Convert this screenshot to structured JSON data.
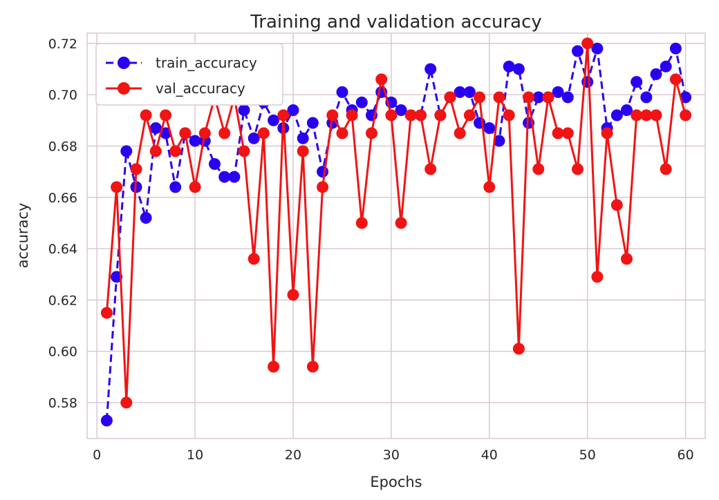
{
  "chart_data": {
    "type": "line",
    "title": "Training and validation accuracy",
    "xlabel": "Epochs",
    "ylabel": "accuracy",
    "xlim": [
      -1,
      62
    ],
    "ylim": [
      0.566,
      0.724
    ],
    "xticks": [
      0,
      10,
      20,
      30,
      40,
      50,
      60
    ],
    "xtick_labels": [
      "0",
      "10",
      "20",
      "30",
      "40",
      "50",
      "60"
    ],
    "yticks": [
      0.58,
      0.6,
      0.62,
      0.64,
      0.66,
      0.68,
      0.7,
      0.72
    ],
    "ytick_labels": [
      "0.58",
      "0.60",
      "0.62",
      "0.64",
      "0.66",
      "0.68",
      "0.70",
      "0.72"
    ],
    "grid": true,
    "legend_position": "top-left",
    "x": [
      1,
      2,
      3,
      4,
      5,
      6,
      7,
      8,
      9,
      10,
      11,
      12,
      13,
      14,
      15,
      16,
      17,
      18,
      19,
      20,
      21,
      22,
      23,
      24,
      25,
      26,
      27,
      28,
      29,
      30,
      31,
      32,
      33,
      34,
      35,
      36,
      37,
      38,
      39,
      40,
      41,
      42,
      43,
      44,
      45,
      46,
      47,
      48,
      49,
      50,
      51,
      52,
      53,
      54,
      55,
      56,
      57,
      58,
      59,
      60
    ],
    "series": [
      {
        "name": "train_accuracy",
        "color": "#2a00f0",
        "line_style": "dashed",
        "marker": "circle",
        "values": [
          0.573,
          0.629,
          0.678,
          0.664,
          0.652,
          0.687,
          0.685,
          0.664,
          0.685,
          0.682,
          0.682,
          0.673,
          0.668,
          0.668,
          0.694,
          0.683,
          0.697,
          0.69,
          0.687,
          0.694,
          0.683,
          0.689,
          0.67,
          0.689,
          0.701,
          0.694,
          0.697,
          0.692,
          0.701,
          0.697,
          0.694,
          0.692,
          0.692,
          0.71,
          0.692,
          0.699,
          0.701,
          0.701,
          0.689,
          0.687,
          0.682,
          0.711,
          0.71,
          0.689,
          0.699,
          0.699,
          0.701,
          0.699,
          0.717,
          0.705,
          0.718,
          0.687,
          0.692,
          0.694,
          0.705,
          0.699,
          0.708,
          0.711,
          0.718,
          0.699
        ]
      },
      {
        "name": "val_accuracy",
        "color": "#f01414",
        "line_style": "solid",
        "marker": "circle",
        "values": [
          0.615,
          0.664,
          0.58,
          0.671,
          0.692,
          0.678,
          0.692,
          0.678,
          0.685,
          0.664,
          0.685,
          0.699,
          0.685,
          0.699,
          0.678,
          0.636,
          0.685,
          0.594,
          0.692,
          0.622,
          0.678,
          0.594,
          0.664,
          0.692,
          0.685,
          0.692,
          0.65,
          0.685,
          0.706,
          0.692,
          0.65,
          0.692,
          0.692,
          0.671,
          0.692,
          0.699,
          0.685,
          0.692,
          0.699,
          0.664,
          0.699,
          0.692,
          0.601,
          0.699,
          0.671,
          0.699,
          0.685,
          0.685,
          0.671,
          0.72,
          0.629,
          0.685,
          0.657,
          0.636,
          0.692,
          0.692,
          0.692,
          0.671,
          0.706,
          0.692
        ]
      }
    ]
  }
}
